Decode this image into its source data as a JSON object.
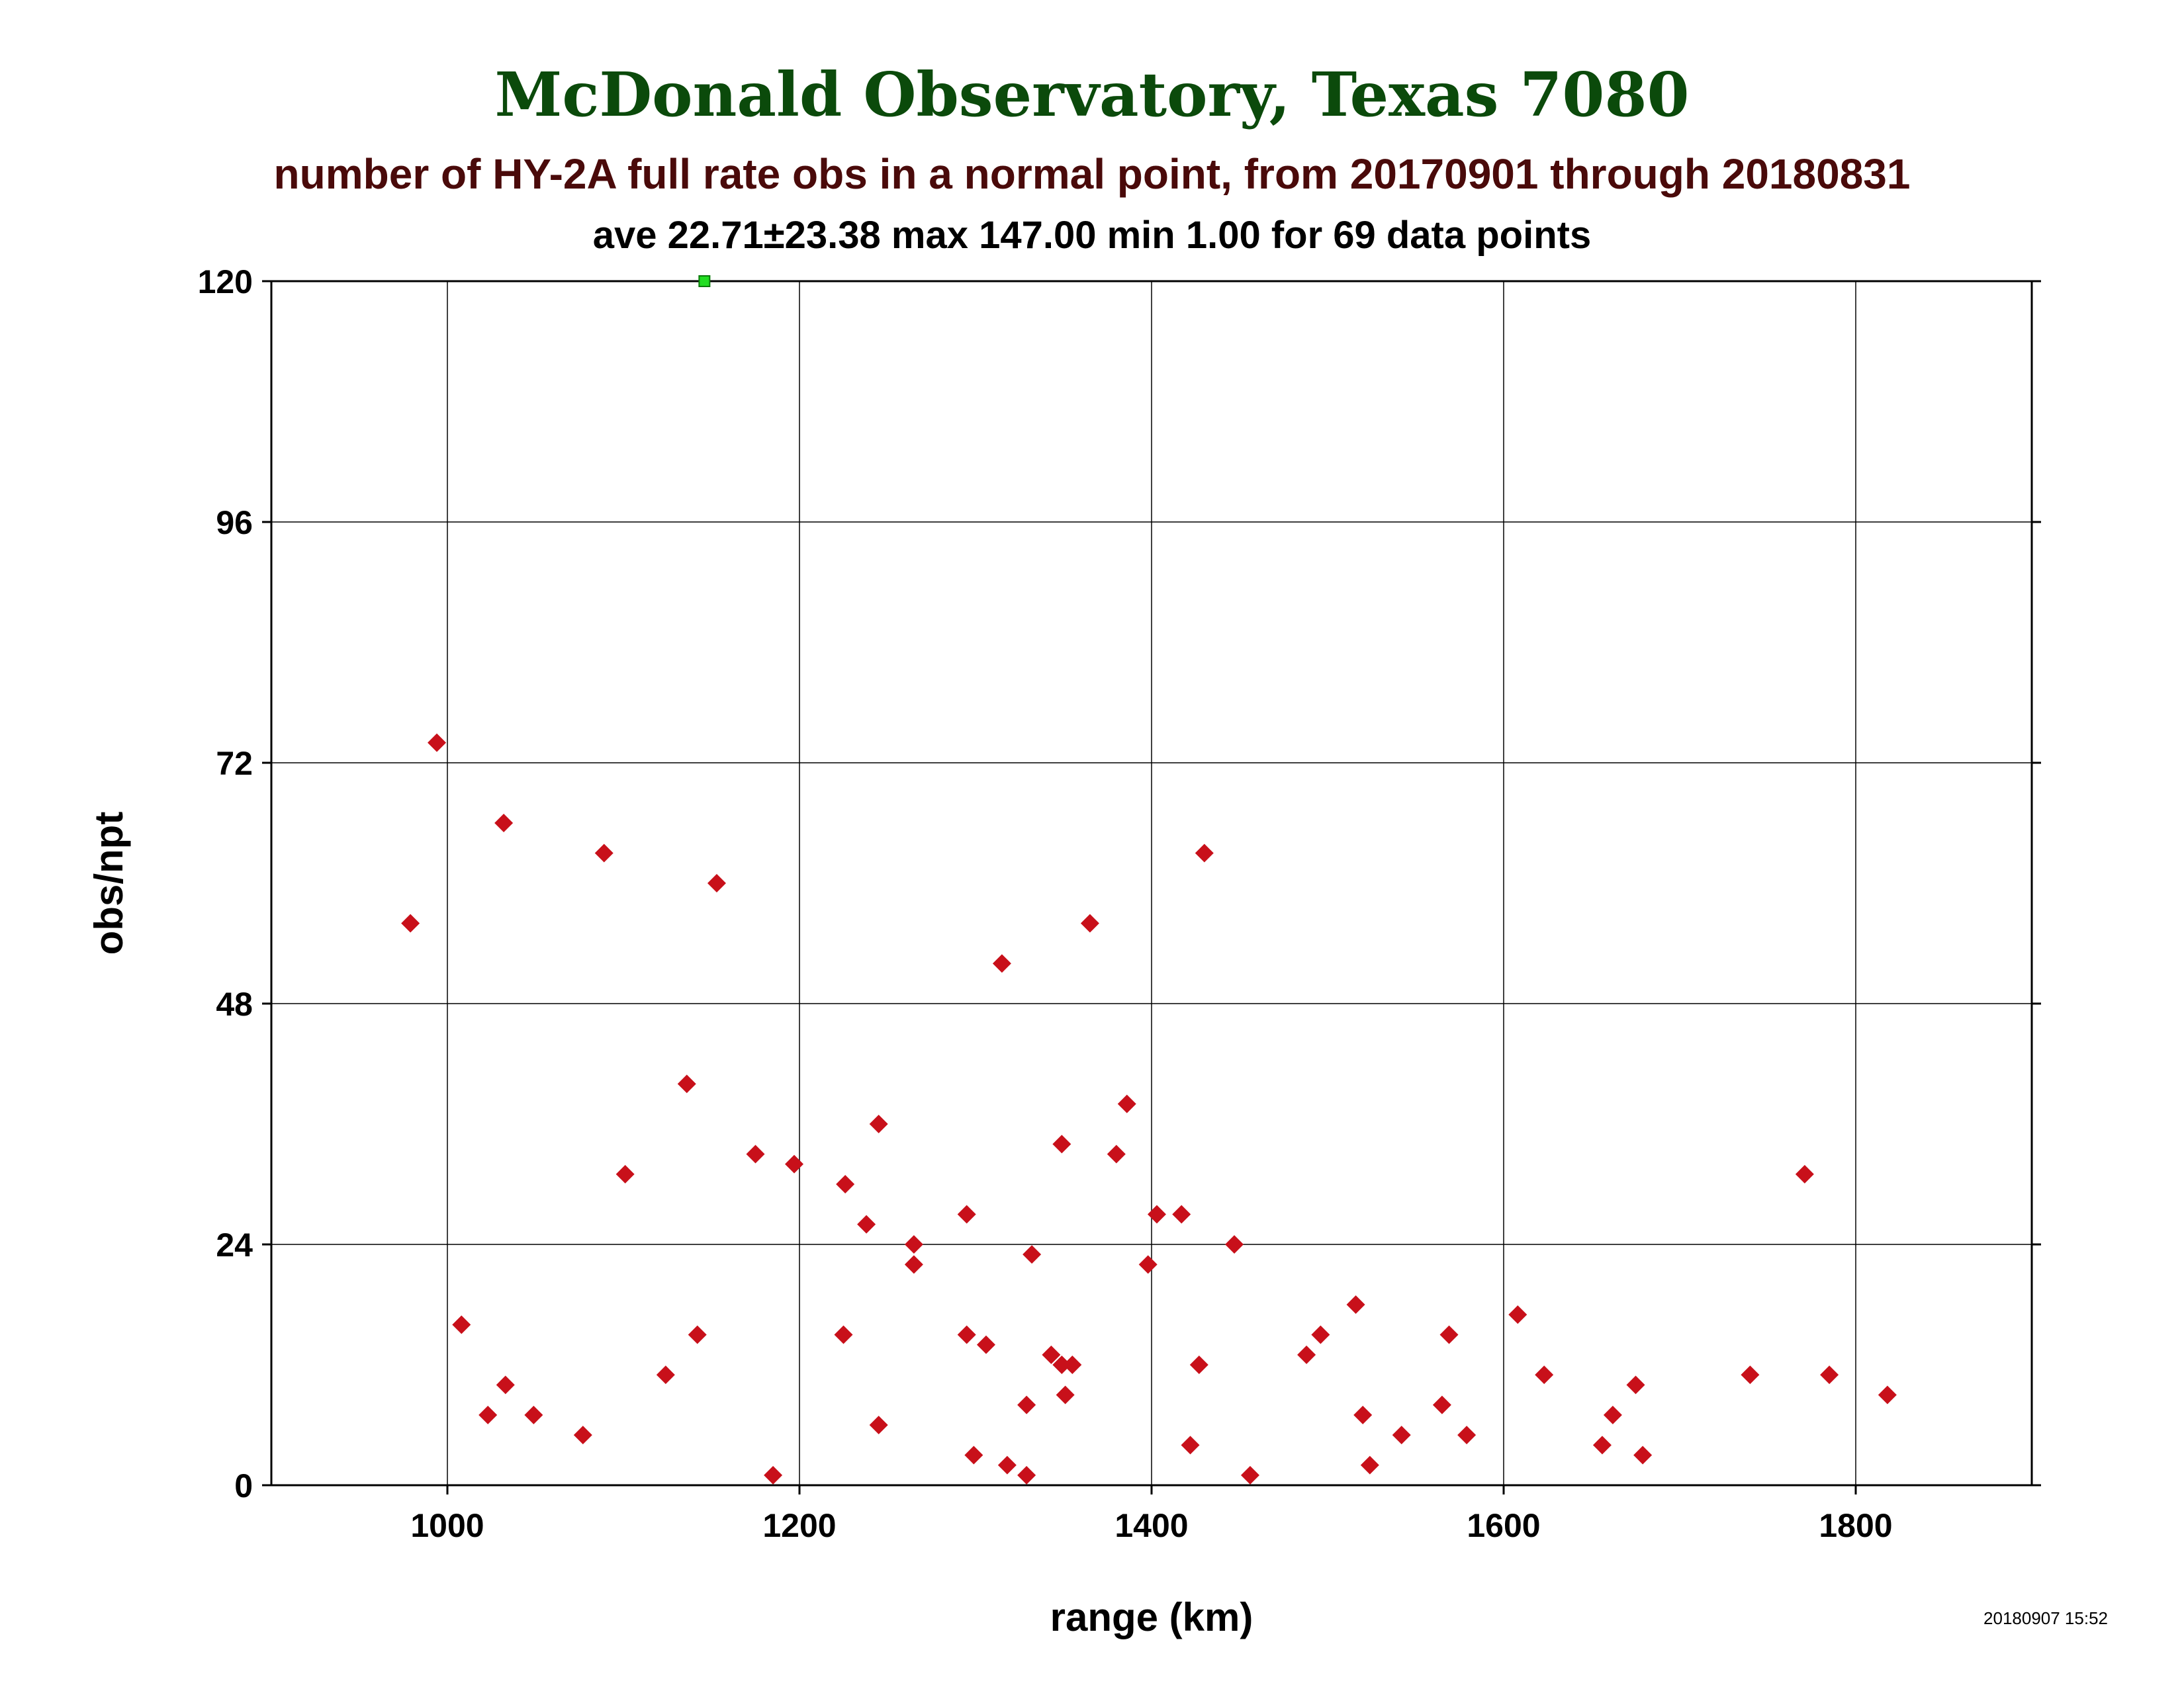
{
  "chart_data": {
    "type": "scatter",
    "title": "McDonald Observatory, Texas 7080",
    "subtitle": "number of HY-2A full rate obs in a normal point, from 20170901 through 20180831",
    "stats": "ave 22.71±23.38 max 147.00 min 1.00 for 69 data points",
    "xlabel": "range (km)",
    "ylabel": "obs/npt",
    "timestamp": "20180907 15:52",
    "xlim": [
      900,
      1900
    ],
    "ylim": [
      0,
      120
    ],
    "xticks": [
      1000,
      1200,
      1400,
      1600,
      1800
    ],
    "yticks": [
      0,
      24,
      48,
      72,
      96,
      120
    ],
    "grid": true,
    "colors": {
      "title": "#0b4a0b",
      "subtitle": "#4a0a0a",
      "points": "#c8101a",
      "off_scale_marker": "#22dd22"
    },
    "off_scale_points": [
      {
        "x": 1146,
        "y": 147
      }
    ],
    "points": [
      {
        "x": 979,
        "y": 56
      },
      {
        "x": 994,
        "y": 74
      },
      {
        "x": 1008,
        "y": 16
      },
      {
        "x": 1023,
        "y": 7
      },
      {
        "x": 1032,
        "y": 66
      },
      {
        "x": 1033,
        "y": 10
      },
      {
        "x": 1049,
        "y": 7
      },
      {
        "x": 1077,
        "y": 5
      },
      {
        "x": 1089,
        "y": 63
      },
      {
        "x": 1101,
        "y": 31
      },
      {
        "x": 1124,
        "y": 11
      },
      {
        "x": 1136,
        "y": 40
      },
      {
        "x": 1142,
        "y": 15
      },
      {
        "x": 1153,
        "y": 60
      },
      {
        "x": 1175,
        "y": 33
      },
      {
        "x": 1185,
        "y": 1
      },
      {
        "x": 1197,
        "y": 32
      },
      {
        "x": 1225,
        "y": 15
      },
      {
        "x": 1226,
        "y": 30
      },
      {
        "x": 1238,
        "y": 26
      },
      {
        "x": 1245,
        "y": 36
      },
      {
        "x": 1245,
        "y": 6
      },
      {
        "x": 1265,
        "y": 24
      },
      {
        "x": 1265,
        "y": 22
      },
      {
        "x": 1295,
        "y": 27
      },
      {
        "x": 1295,
        "y": 15
      },
      {
        "x": 1299,
        "y": 3
      },
      {
        "x": 1306,
        "y": 14
      },
      {
        "x": 1315,
        "y": 52
      },
      {
        "x": 1318,
        "y": 2
      },
      {
        "x": 1329,
        "y": 8
      },
      {
        "x": 1329,
        "y": 1
      },
      {
        "x": 1332,
        "y": 23
      },
      {
        "x": 1343,
        "y": 13
      },
      {
        "x": 1349,
        "y": 12
      },
      {
        "x": 1349,
        "y": 34
      },
      {
        "x": 1351,
        "y": 9
      },
      {
        "x": 1355,
        "y": 12
      },
      {
        "x": 1365,
        "y": 56
      },
      {
        "x": 1380,
        "y": 33
      },
      {
        "x": 1386,
        "y": 38
      },
      {
        "x": 1398,
        "y": 22
      },
      {
        "x": 1403,
        "y": 27
      },
      {
        "x": 1417,
        "y": 27
      },
      {
        "x": 1422,
        "y": 4
      },
      {
        "x": 1427,
        "y": 12
      },
      {
        "x": 1430,
        "y": 63
      },
      {
        "x": 1447,
        "y": 24
      },
      {
        "x": 1456,
        "y": 1
      },
      {
        "x": 1488,
        "y": 13
      },
      {
        "x": 1496,
        "y": 15
      },
      {
        "x": 1516,
        "y": 18
      },
      {
        "x": 1520,
        "y": 7
      },
      {
        "x": 1524,
        "y": 2
      },
      {
        "x": 1542,
        "y": 5
      },
      {
        "x": 1565,
        "y": 8
      },
      {
        "x": 1569,
        "y": 15
      },
      {
        "x": 1579,
        "y": 5
      },
      {
        "x": 1608,
        "y": 17
      },
      {
        "x": 1623,
        "y": 11
      },
      {
        "x": 1656,
        "y": 4
      },
      {
        "x": 1662,
        "y": 7
      },
      {
        "x": 1675,
        "y": 10
      },
      {
        "x": 1679,
        "y": 3
      },
      {
        "x": 1740,
        "y": 11
      },
      {
        "x": 1771,
        "y": 31
      },
      {
        "x": 1785,
        "y": 11
      },
      {
        "x": 1818,
        "y": 9
      }
    ]
  }
}
